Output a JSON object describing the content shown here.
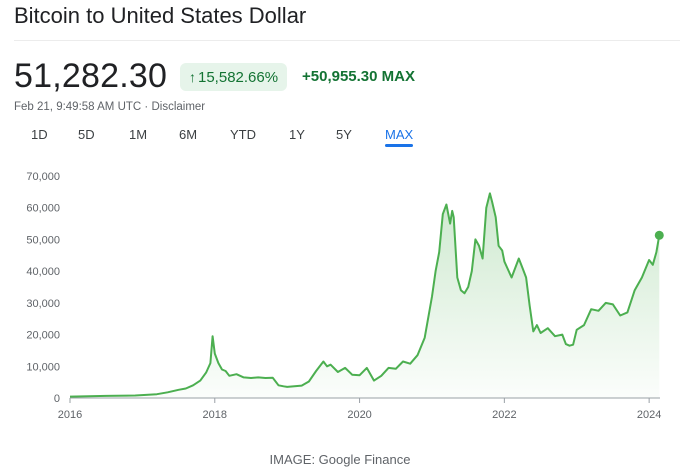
{
  "header": {
    "title": "Bitcoin to United States Dollar"
  },
  "quote": {
    "price": "51,282.30",
    "change_arrow": "↑",
    "change_percent": "15,582.66%",
    "change_absolute": "+50,955.30",
    "range_label": "MAX",
    "timestamp": "Feb 21, 9:49:58 AM UTC",
    "separator": "·",
    "disclaimer": "Disclaimer"
  },
  "tabs": [
    {
      "label": "1D"
    },
    {
      "label": "5D"
    },
    {
      "label": "1M"
    },
    {
      "label": "6M"
    },
    {
      "label": "YTD"
    },
    {
      "label": "1Y"
    },
    {
      "label": "5Y"
    },
    {
      "label": "MAX",
      "active": true
    }
  ],
  "colors": {
    "line": "#4caf50",
    "positive_text": "#137333",
    "positive_bg": "#e6f4ea",
    "accent": "#1a73e8"
  },
  "chart_data": {
    "type": "area",
    "title": "",
    "xlabel": "",
    "ylabel": "",
    "ylim": [
      0,
      70000
    ],
    "xlim": [
      2016.0,
      2024.15
    ],
    "yticks": [
      "70,000",
      "60,000",
      "50,000",
      "40,000",
      "30,000",
      "20,000",
      "10,000",
      "0"
    ],
    "yticks_values": [
      70000,
      60000,
      50000,
      40000,
      30000,
      20000,
      10000,
      0
    ],
    "xticks": [
      "2016",
      "2018",
      "2020",
      "2022",
      "2024"
    ],
    "xticks_values": [
      2016,
      2018,
      2020,
      2022,
      2024
    ],
    "grid": false,
    "series": [
      {
        "name": "",
        "x": [
          2016.0,
          2016.5,
          2016.9,
          2017.2,
          2017.35,
          2017.5,
          2017.6,
          2017.7,
          2017.8,
          2017.88,
          2017.94,
          2017.97,
          2018.0,
          2018.05,
          2018.1,
          2018.15,
          2018.2,
          2018.3,
          2018.4,
          2018.5,
          2018.6,
          2018.7,
          2018.8,
          2018.88,
          2018.95,
          2019.0,
          2019.2,
          2019.3,
          2019.4,
          2019.5,
          2019.55,
          2019.6,
          2019.7,
          2019.8,
          2019.9,
          2020.0,
          2020.1,
          2020.2,
          2020.3,
          2020.4,
          2020.5,
          2020.6,
          2020.7,
          2020.8,
          2020.9,
          2021.0,
          2021.05,
          2021.1,
          2021.15,
          2021.2,
          2021.25,
          2021.28,
          2021.3,
          2021.35,
          2021.4,
          2021.45,
          2021.5,
          2021.55,
          2021.6,
          2021.65,
          2021.7,
          2021.75,
          2021.8,
          2021.83,
          2021.88,
          2021.92,
          2021.97,
          2022.0,
          2022.1,
          2022.2,
          2022.25,
          2022.3,
          2022.35,
          2022.4,
          2022.45,
          2022.5,
          2022.6,
          2022.7,
          2022.8,
          2022.85,
          2022.9,
          2022.95,
          2023.0,
          2023.1,
          2023.2,
          2023.3,
          2023.4,
          2023.5,
          2023.6,
          2023.7,
          2023.8,
          2023.9,
          2024.0,
          2024.05,
          2024.1,
          2024.14
        ],
        "values": [
          430,
          650,
          800,
          1200,
          1800,
          2600,
          3000,
          4000,
          5500,
          8000,
          11000,
          19500,
          14000,
          11000,
          9000,
          8500,
          7000,
          7500,
          6500,
          6300,
          6500,
          6300,
          6400,
          4000,
          3700,
          3500,
          3900,
          5200,
          8500,
          11500,
          10000,
          10500,
          8200,
          9500,
          7300,
          7200,
          9500,
          5500,
          7000,
          9500,
          9200,
          11500,
          10800,
          13500,
          19000,
          32000,
          40000,
          46000,
          58000,
          61000,
          55000,
          59000,
          57000,
          38000,
          34000,
          33000,
          35000,
          40000,
          50000,
          48000,
          44000,
          60000,
          64500,
          62000,
          57000,
          48000,
          46500,
          43000,
          38000,
          44000,
          41000,
          38000,
          29000,
          21000,
          23000,
          20500,
          22000,
          19500,
          20000,
          17000,
          16500,
          16800,
          21500,
          23000,
          28000,
          27500,
          30000,
          29500,
          26000,
          27000,
          34000,
          38000,
          43500,
          42000,
          46000,
          51300
        ]
      }
    ]
  },
  "footer": {
    "caption": "IMAGE: Google Finance"
  }
}
